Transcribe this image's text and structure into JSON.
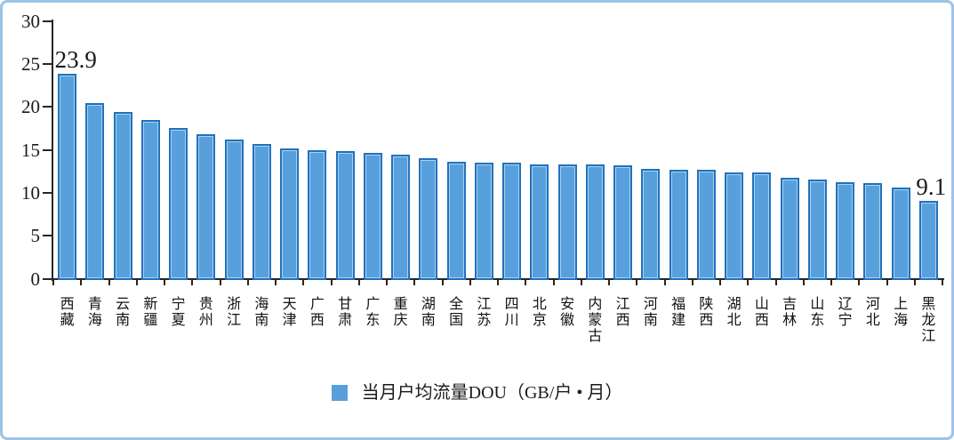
{
  "chart_data": {
    "type": "bar",
    "title": "",
    "xlabel": "",
    "ylabel": "",
    "categories": [
      "西藏",
      "青海",
      "云南",
      "新疆",
      "宁夏",
      "贵州",
      "浙江",
      "海南",
      "天津",
      "广西",
      "甘肃",
      "广东",
      "重庆",
      "湖南",
      "全国",
      "江苏",
      "四川",
      "北京",
      "安徽",
      "内蒙古",
      "江西",
      "河南",
      "福建",
      "陕西",
      "湖北",
      "山西",
      "吉林",
      "山东",
      "辽宁",
      "河北",
      "上海",
      "黑龙江"
    ],
    "values": [
      23.9,
      20.4,
      19.4,
      18.5,
      17.5,
      16.8,
      16.2,
      15.7,
      15.2,
      15.0,
      14.9,
      14.7,
      14.4,
      14.0,
      13.6,
      13.5,
      13.5,
      13.3,
      13.3,
      13.3,
      13.2,
      12.8,
      12.7,
      12.7,
      12.4,
      12.4,
      11.8,
      11.5,
      11.2,
      11.1,
      10.6,
      9.1
    ],
    "ylim": [
      0,
      30
    ],
    "yticks": [
      0,
      5,
      10,
      15,
      20,
      25,
      30
    ],
    "grid": false,
    "legend": {
      "position": "bottom",
      "label": "当月户均流量DOU（GB/户 • 月）"
    },
    "annotations": [
      {
        "index": 0,
        "text": "23.9"
      },
      {
        "index": 31,
        "text": "9.1"
      }
    ],
    "colors": {
      "bar_fill": "#58a0db",
      "bar_border": "#1f72c0",
      "axis": "#262626",
      "text": "#1a1a1a",
      "frame_border": "#9dc3e6"
    }
  }
}
